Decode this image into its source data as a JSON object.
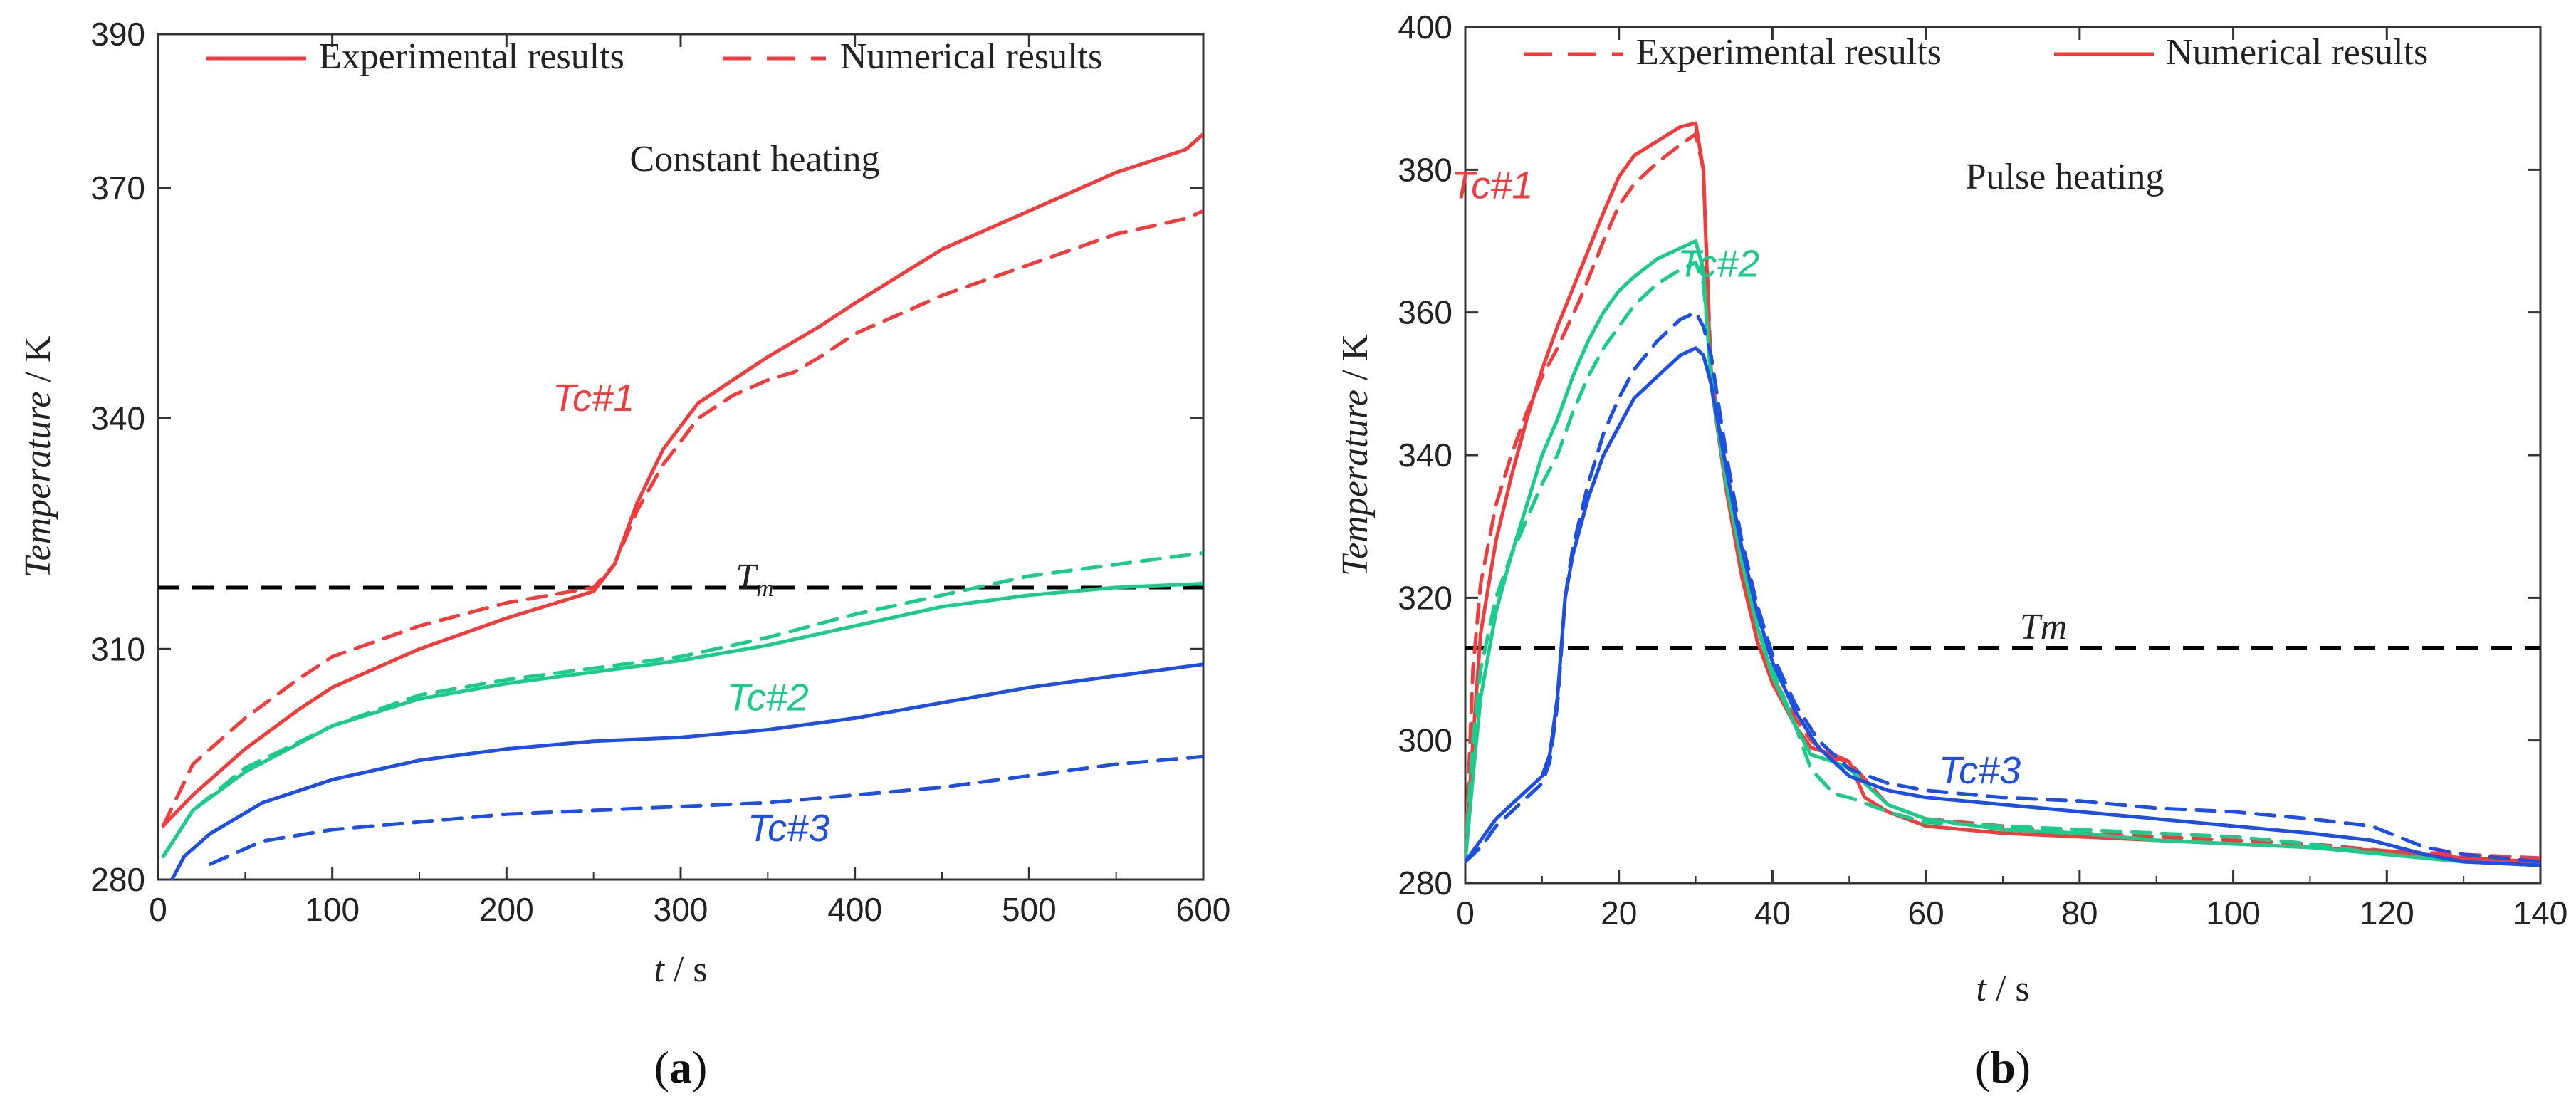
{
  "colors": {
    "tc1": "#f03c3c",
    "tc2": "#1bcb8b",
    "tc3": "#1e4fe0",
    "reference": "#000000",
    "axis": "#333333"
  },
  "chart_data": [
    {
      "panel": "(a)",
      "panel_prefix": "(",
      "panel_letter": "a",
      "panel_suffix": ")",
      "type": "line",
      "title": "",
      "xlabel": "t",
      "xunit": "s",
      "ylabel": "Temperature",
      "yunit": "K",
      "xlim": [
        0,
        600
      ],
      "ylim": [
        280,
        390
      ],
      "xticks": [
        0,
        100,
        200,
        300,
        400,
        500,
        600
      ],
      "yticks": [
        280,
        310,
        340,
        370,
        390
      ],
      "grid": false,
      "legend": {
        "placement": "top",
        "entries": [
          {
            "label": "Experimental results",
            "style": "solid"
          },
          {
            "label": "Numerical results",
            "style": "dashed"
          }
        ]
      },
      "annotation": "Constant heating",
      "reference_line": {
        "label": "T",
        "subscript": "m",
        "y": 318
      },
      "series": [
        {
          "name": "Tc#1",
          "color_key": "tc1",
          "style": "solid",
          "x": [
            3,
            20,
            50,
            80,
            100,
            150,
            200,
            250,
            262,
            275,
            290,
            310,
            330,
            350,
            365,
            380,
            400,
            450,
            500,
            550,
            590,
            600
          ],
          "y": [
            287,
            291,
            297,
            302,
            305,
            310,
            314,
            317.5,
            321,
            329,
            336,
            342,
            345,
            348,
            350,
            352,
            355,
            362,
            367,
            372,
            375,
            377
          ]
        },
        {
          "name": "Tc#1",
          "color_key": "tc1",
          "style": "dashed",
          "x": [
            3,
            20,
            50,
            80,
            100,
            150,
            200,
            250,
            262,
            275,
            290,
            310,
            330,
            350,
            365,
            380,
            400,
            450,
            500,
            550,
            590,
            600
          ],
          "y": [
            287,
            295,
            301,
            306,
            309,
            313,
            316,
            318,
            321,
            328,
            334,
            340,
            343,
            345,
            346,
            348,
            351,
            356,
            360,
            364,
            366,
            367
          ]
        },
        {
          "name": "Tc#2",
          "color_key": "tc2",
          "style": "solid",
          "x": [
            3,
            20,
            50,
            100,
            150,
            200,
            250,
            300,
            350,
            400,
            450,
            500,
            550,
            600
          ],
          "y": [
            283,
            289,
            294,
            300,
            303.5,
            305.5,
            307,
            308.5,
            310.5,
            313,
            315.5,
            317,
            318,
            318.5
          ]
        },
        {
          "name": "Tc#2",
          "color_key": "tc2",
          "style": "dashed",
          "x": [
            3,
            20,
            50,
            100,
            150,
            200,
            250,
            300,
            350,
            400,
            450,
            500,
            550,
            600
          ],
          "y": [
            283,
            289,
            294.5,
            300,
            304,
            306,
            307.5,
            309,
            311.5,
            314.5,
            317,
            319.5,
            321,
            322.5
          ]
        },
        {
          "name": "Tc#3",
          "color_key": "tc3",
          "style": "solid",
          "x": [
            8,
            15,
            30,
            60,
            100,
            150,
            200,
            250,
            300,
            350,
            400,
            450,
            500,
            550,
            600
          ],
          "y": [
            280,
            283,
            286,
            290,
            293,
            295.5,
            297,
            298,
            298.5,
            299.5,
            301,
            303,
            305,
            306.5,
            308
          ]
        },
        {
          "name": "Tc#3",
          "color_key": "tc3",
          "style": "dashed",
          "x": [
            30,
            60,
            100,
            150,
            200,
            250,
            300,
            350,
            400,
            450,
            500,
            550,
            600
          ],
          "y": [
            282,
            285,
            286.5,
            287.5,
            288.5,
            289,
            289.5,
            290,
            291,
            292,
            293.5,
            295,
            296
          ]
        }
      ],
      "curve_labels": [
        {
          "text": "Tc#1",
          "color_key": "tc1",
          "x": 250,
          "y": 341
        },
        {
          "text": "Tc#2",
          "color_key": "tc2",
          "x": 350,
          "y": 302
        },
        {
          "text": "Tc#3",
          "color_key": "tc3",
          "x": 362,
          "y": 285
        }
      ]
    },
    {
      "panel": "(b)",
      "panel_prefix": "(",
      "panel_letter": "b",
      "panel_suffix": ")",
      "type": "line",
      "title": "",
      "xlabel": "t",
      "xunit": "s",
      "ylabel": "Temperature",
      "yunit": "K",
      "xlim": [
        0,
        140
      ],
      "ylim": [
        280,
        400
      ],
      "xticks": [
        0,
        20,
        40,
        60,
        80,
        100,
        120,
        140
      ],
      "yticks": [
        280,
        300,
        320,
        340,
        360,
        380,
        400
      ],
      "grid": false,
      "legend": {
        "placement": "top",
        "entries": [
          {
            "label": "Experimental results",
            "style": "dashed"
          },
          {
            "label": "Numerical results",
            "style": "solid"
          }
        ]
      },
      "annotation": "Pulse heating",
      "reference_line": {
        "label": "Tm",
        "subscript": "",
        "y": 313
      },
      "series": [
        {
          "name": "Tc#1",
          "color_key": "tc1",
          "style": "solid",
          "x": [
            0,
            1,
            2,
            4,
            6,
            8,
            10,
            12,
            15,
            18,
            20,
            22,
            25,
            28,
            30,
            31,
            32,
            34,
            36,
            38,
            40,
            43,
            45,
            48,
            50,
            52,
            55,
            60,
            70,
            80,
            90,
            100,
            110,
            120,
            130,
            140
          ],
          "y": [
            283,
            300,
            315,
            328,
            337,
            345,
            352,
            358,
            366,
            374,
            379,
            382,
            384,
            386,
            386.5,
            380,
            350,
            335,
            323,
            314,
            308,
            302,
            299,
            298,
            297,
            292,
            290,
            288,
            287,
            286.5,
            286,
            285.5,
            285,
            284.5,
            283.5,
            283
          ]
        },
        {
          "name": "Tc#1",
          "color_key": "tc1",
          "style": "dashed",
          "x": [
            0,
            1,
            2,
            4,
            6,
            8,
            10,
            12,
            15,
            18,
            20,
            22,
            25,
            28,
            30,
            31,
            32,
            34,
            36,
            38,
            40,
            43,
            45,
            48,
            50,
            55,
            60,
            70,
            80,
            90,
            100,
            110,
            120,
            130,
            140
          ],
          "y": [
            283,
            310,
            322,
            333,
            340,
            346,
            351,
            355,
            362,
            370,
            375,
            378,
            381,
            383.5,
            385,
            380,
            352,
            336,
            325,
            316,
            309,
            303,
            300,
            297.5,
            297,
            291,
            289,
            288,
            287,
            286.5,
            286,
            285.5,
            284.5,
            284,
            283.5
          ]
        },
        {
          "name": "Tc#2",
          "color_key": "tc2",
          "style": "solid",
          "x": [
            0,
            1,
            2,
            4,
            6,
            8,
            10,
            12,
            14,
            16,
            18,
            20,
            22,
            25,
            28,
            30,
            31,
            32,
            34,
            36,
            38,
            40,
            43,
            45,
            48,
            50,
            55,
            60,
            70,
            80,
            90,
            100,
            110,
            120,
            130,
            140
          ],
          "y": [
            283,
            295,
            306,
            318,
            326,
            333,
            340,
            345,
            351,
            356,
            360,
            363,
            365,
            367.5,
            369,
            370,
            366,
            350,
            336,
            325,
            316,
            309,
            302,
            298,
            297,
            296,
            291,
            289,
            287.5,
            287,
            286,
            285.5,
            285,
            284,
            283,
            282.5
          ]
        },
        {
          "name": "Tc#2",
          "color_key": "tc2",
          "style": "dashed",
          "x": [
            0,
            1,
            2,
            4,
            6,
            8,
            10,
            12,
            14,
            16,
            18,
            20,
            22,
            25,
            28,
            30,
            31,
            32,
            34,
            36,
            38,
            40,
            43,
            45,
            48,
            50,
            55,
            60,
            70,
            80,
            90,
            100,
            110,
            120,
            130,
            140
          ],
          "y": [
            283,
            300,
            310,
            320,
            326,
            331,
            336,
            340,
            346,
            351,
            355,
            358,
            361,
            364,
            366,
            367,
            364,
            352,
            338,
            326,
            317,
            310,
            302,
            296,
            292.5,
            292,
            290,
            288.5,
            288,
            287.5,
            287,
            286.5,
            285.5,
            284,
            283,
            282.5
          ]
        },
        {
          "name": "Tc#3",
          "color_key": "tc3",
          "style": "solid",
          "x": [
            0,
            2,
            4,
            6,
            8,
            10,
            11,
            12,
            13,
            14,
            16,
            18,
            20,
            22,
            25,
            28,
            30,
            31,
            32,
            34,
            36,
            38,
            40,
            43,
            46,
            50,
            55,
            60,
            70,
            80,
            90,
            100,
            110,
            118,
            125,
            130,
            140
          ],
          "y": [
            283,
            286,
            289,
            291,
            293,
            295,
            298,
            306,
            320,
            326,
            334,
            340,
            344,
            348,
            351,
            354,
            355,
            354,
            350,
            338,
            327,
            318,
            311,
            304,
            299,
            295,
            293,
            292,
            291,
            290,
            289,
            288,
            287,
            286,
            284,
            283,
            282.5
          ]
        },
        {
          "name": "Tc#3",
          "color_key": "tc3",
          "style": "dashed",
          "x": [
            0,
            2,
            4,
            6,
            8,
            10,
            11,
            12,
            13,
            14,
            16,
            18,
            20,
            22,
            25,
            28,
            30,
            31,
            32,
            34,
            36,
            38,
            40,
            43,
            46,
            50,
            55,
            60,
            70,
            80,
            90,
            100,
            110,
            118,
            125,
            130,
            140
          ],
          "y": [
            283,
            285,
            288,
            290,
            292,
            294,
            297,
            305,
            320,
            327,
            336,
            343,
            348,
            352,
            356,
            359,
            360,
            358,
            354,
            340,
            328,
            319,
            312,
            305,
            300,
            296,
            294,
            293,
            292,
            291.5,
            290.5,
            290,
            289,
            288,
            285,
            284,
            283
          ]
        }
      ],
      "curve_labels": [
        {
          "text": "Tc#1",
          "color_key": "tc1",
          "x": 3.5,
          "y": 376
        },
        {
          "text": "Tc#2",
          "color_key": "tc2",
          "x": 33,
          "y": 365
        },
        {
          "text": "Tc#3",
          "color_key": "tc3",
          "x": 67,
          "y": 294
        }
      ]
    }
  ]
}
